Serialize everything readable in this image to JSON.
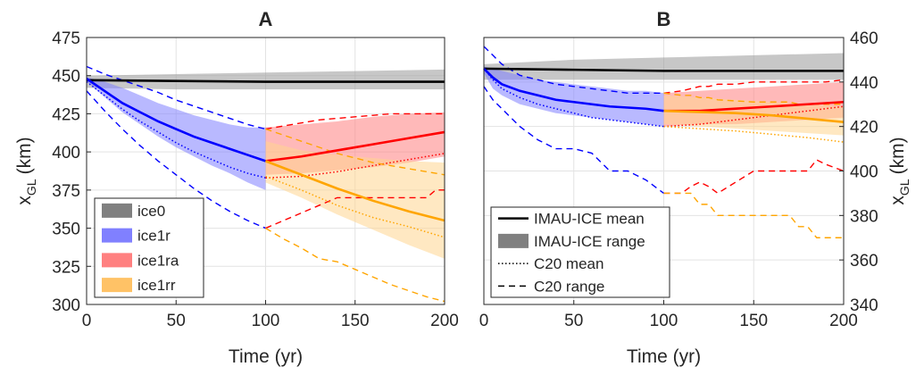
{
  "chart_data": [
    {
      "panel": "A",
      "type": "line",
      "title": "A",
      "xlabel": "Time (yr)",
      "ylabel": "x",
      "ylabel_sub": "GL",
      "ylabel_unit": "(km)",
      "xlim": [
        0,
        200
      ],
      "ylim": [
        300,
        475
      ],
      "xticks": [
        0,
        50,
        100,
        150,
        200
      ],
      "yticks": [
        300,
        325,
        350,
        375,
        400,
        425,
        450,
        475
      ],
      "grid": true,
      "legend_position": "bottom-left",
      "legend": [
        {
          "label": "ice0",
          "color": "#808080"
        },
        {
          "label": "ice1r",
          "color": "#8080ff"
        },
        {
          "label": "ice1ra",
          "color": "#ff8080"
        },
        {
          "label": "ice1rr",
          "color": "#ffc266"
        }
      ],
      "series": [
        {
          "name": "ice0",
          "color": "#000000",
          "fill": "#999999",
          "x": [
            0,
            50,
            100,
            150,
            200
          ],
          "mean": [
            447,
            446.5,
            446,
            446,
            446
          ],
          "lower": [
            442,
            441,
            441,
            441,
            441
          ],
          "upper": [
            450,
            451,
            452,
            453,
            454
          ]
        },
        {
          "name": "ice1r",
          "color": "#0000ff",
          "fill": "#8080ff",
          "x": [
            0,
            10,
            20,
            30,
            40,
            50,
            60,
            70,
            80,
            90,
            100
          ],
          "mean": [
            448,
            440,
            432,
            426,
            420,
            415,
            410,
            406,
            402,
            398,
            394
          ],
          "lower": [
            446,
            436,
            426,
            418,
            410,
            403,
            397,
            391,
            386,
            380,
            375
          ],
          "upper": [
            449,
            446,
            442,
            437,
            432,
            428,
            424,
            421,
            418,
            416,
            416
          ],
          "c20_mean": [
            446,
            437,
            428,
            420,
            413,
            406,
            400,
            395,
            390,
            386,
            383
          ],
          "c20_lower": [
            440,
            427,
            415,
            404,
            394,
            385,
            376,
            368,
            361,
            355,
            350
          ],
          "c20_upper": [
            456,
            451,
            447,
            443,
            439,
            434,
            430,
            426,
            422,
            418,
            415
          ]
        },
        {
          "name": "ice1ra",
          "color": "#ff0000",
          "fill": "#ff8080",
          "x": [
            100,
            120,
            140,
            160,
            180,
            200
          ],
          "mean": [
            394,
            397,
            401,
            405,
            409,
            413
          ],
          "lower": [
            385,
            386,
            388,
            390,
            393,
            397
          ],
          "upper": [
            416,
            418,
            420,
            423,
            425,
            426
          ],
          "c20_mean": [
            383,
            384,
            387,
            391,
            395,
            399
          ],
          "c20_x_lower": [
            100,
            110,
            120,
            130,
            140,
            150,
            160,
            170,
            180,
            190,
            195,
            200
          ],
          "c20_lower": [
            350,
            355,
            360,
            365,
            370,
            370,
            370,
            370,
            370,
            370,
            375,
            375
          ],
          "c20_upper": [
            415,
            417,
            419,
            421,
            422,
            423,
            424,
            425,
            425,
            425,
            425,
            425
          ]
        },
        {
          "name": "ice1rr",
          "color": "#ffa500",
          "fill": "#ffd590",
          "x": [
            100,
            120,
            140,
            160,
            180,
            200
          ],
          "mean": [
            394,
            385,
            376,
            368,
            361,
            355
          ],
          "lower": [
            380,
            370,
            359,
            349,
            339,
            330
          ],
          "upper": [
            407,
            401,
            398,
            396,
            394,
            393
          ],
          "c20_mean": [
            384,
            375,
            365,
            357,
            351,
            344
          ],
          "c20_x_lower": [
            100,
            110,
            120,
            130,
            140,
            150,
            160,
            170,
            180,
            190,
            200
          ],
          "c20_lower": [
            350,
            343,
            337,
            330,
            328,
            323,
            318,
            313,
            309,
            305,
            302
          ],
          "c20_upper": [
            415,
            411,
            407,
            403,
            399,
            396,
            393,
            391,
            389,
            387,
            385
          ]
        }
      ]
    },
    {
      "panel": "B",
      "type": "line",
      "title": "B",
      "xlabel": "Time (yr)",
      "ylabel": "x",
      "ylabel_sub": "GL",
      "ylabel_unit": "(km)",
      "xlim": [
        0,
        200
      ],
      "ylim": [
        340,
        460
      ],
      "xticks": [
        0,
        50,
        100,
        150,
        200
      ],
      "yticks": [
        340,
        360,
        380,
        400,
        420,
        440,
        460
      ],
      "grid": true,
      "legend_position": "bottom-left",
      "legend": [
        {
          "label": "IMAU-ICE mean",
          "style": "solid-line"
        },
        {
          "label": "IMAU-ICE range",
          "style": "patch"
        },
        {
          "label": "C20 mean",
          "style": "dotted-line"
        },
        {
          "label": "C20 range",
          "style": "dashed-line"
        }
      ],
      "series": [
        {
          "name": "ice0",
          "color": "#000000",
          "fill": "#999999",
          "x": [
            0,
            50,
            100,
            150,
            200
          ],
          "mean": [
            446,
            445.5,
            445,
            445,
            445
          ],
          "lower": [
            441,
            441,
            441,
            441,
            441
          ],
          "upper": [
            448,
            450,
            451,
            452,
            453
          ]
        },
        {
          "name": "ice1r",
          "color": "#0000ff",
          "fill": "#8080ff",
          "x": [
            0,
            5,
            10,
            20,
            30,
            40,
            50,
            60,
            70,
            80,
            90,
            100
          ],
          "mean": [
            446,
            442,
            439,
            436,
            434,
            432,
            431,
            430,
            429,
            428.5,
            428,
            427
          ],
          "lower": [
            444,
            437,
            434,
            430,
            428,
            426,
            425,
            424,
            423,
            422,
            421,
            420
          ],
          "upper": [
            447,
            446,
            445,
            443,
            441,
            440,
            439,
            438,
            437,
            436,
            436,
            435
          ],
          "c20_mean": [
            446,
            441,
            437,
            433,
            430,
            428,
            426,
            424,
            423,
            422,
            421,
            420
          ],
          "c20_x_lower": [
            0,
            5,
            10,
            20,
            30,
            40,
            50,
            60,
            70,
            80,
            90,
            100
          ],
          "c20_lower": [
            438,
            432,
            428,
            420,
            414,
            410,
            410,
            408,
            400,
            400,
            396,
            390
          ],
          "c20_upper": [
            456,
            452,
            448,
            443,
            441,
            439,
            438,
            437,
            436,
            435,
            435,
            435
          ]
        },
        {
          "name": "ice1ra",
          "color": "#ff0000",
          "fill": "#ff8080",
          "x": [
            100,
            120,
            140,
            160,
            180,
            200
          ],
          "mean": [
            427,
            427,
            428,
            429,
            430,
            431
          ],
          "lower": [
            420,
            421,
            421,
            422,
            423,
            424
          ],
          "upper": [
            435,
            436,
            437,
            438,
            439,
            440
          ],
          "c20_mean": [
            420,
            421,
            423,
            425,
            427,
            429
          ],
          "c20_x_lower": [
            100,
            110,
            115,
            120,
            125,
            130,
            140,
            150,
            160,
            170,
            175,
            180,
            185,
            190,
            200
          ],
          "c20_lower": [
            390,
            390,
            393,
            395,
            393,
            390,
            395,
            400,
            400,
            400,
            400,
            400,
            405,
            403,
            400
          ],
          "c20_upper": [
            435,
            436,
            437,
            438,
            438,
            439,
            439,
            440,
            440,
            440,
            440,
            440,
            440,
            440,
            441
          ]
        },
        {
          "name": "ice1rr",
          "color": "#ffa500",
          "fill": "#ffd590",
          "x": [
            100,
            120,
            140,
            160,
            180,
            200
          ],
          "mean": [
            427,
            426.5,
            426,
            425,
            423.5,
            422
          ],
          "lower": [
            421,
            420,
            419,
            418,
            417,
            416
          ],
          "upper": [
            434,
            433,
            432,
            431,
            430,
            429
          ],
          "c20_mean": [
            420,
            419,
            418,
            416.5,
            415,
            413
          ],
          "c20_x_lower": [
            100,
            110,
            115,
            120,
            125,
            130,
            150,
            170,
            175,
            180,
            185,
            190,
            200
          ],
          "c20_lower": [
            390,
            390,
            390,
            385,
            385,
            380,
            380,
            380,
            375,
            375,
            370,
            370,
            370
          ],
          "c20_upper": [
            435,
            434,
            434,
            433,
            433,
            432,
            431,
            431,
            430,
            430,
            430,
            430,
            430
          ]
        }
      ]
    }
  ]
}
